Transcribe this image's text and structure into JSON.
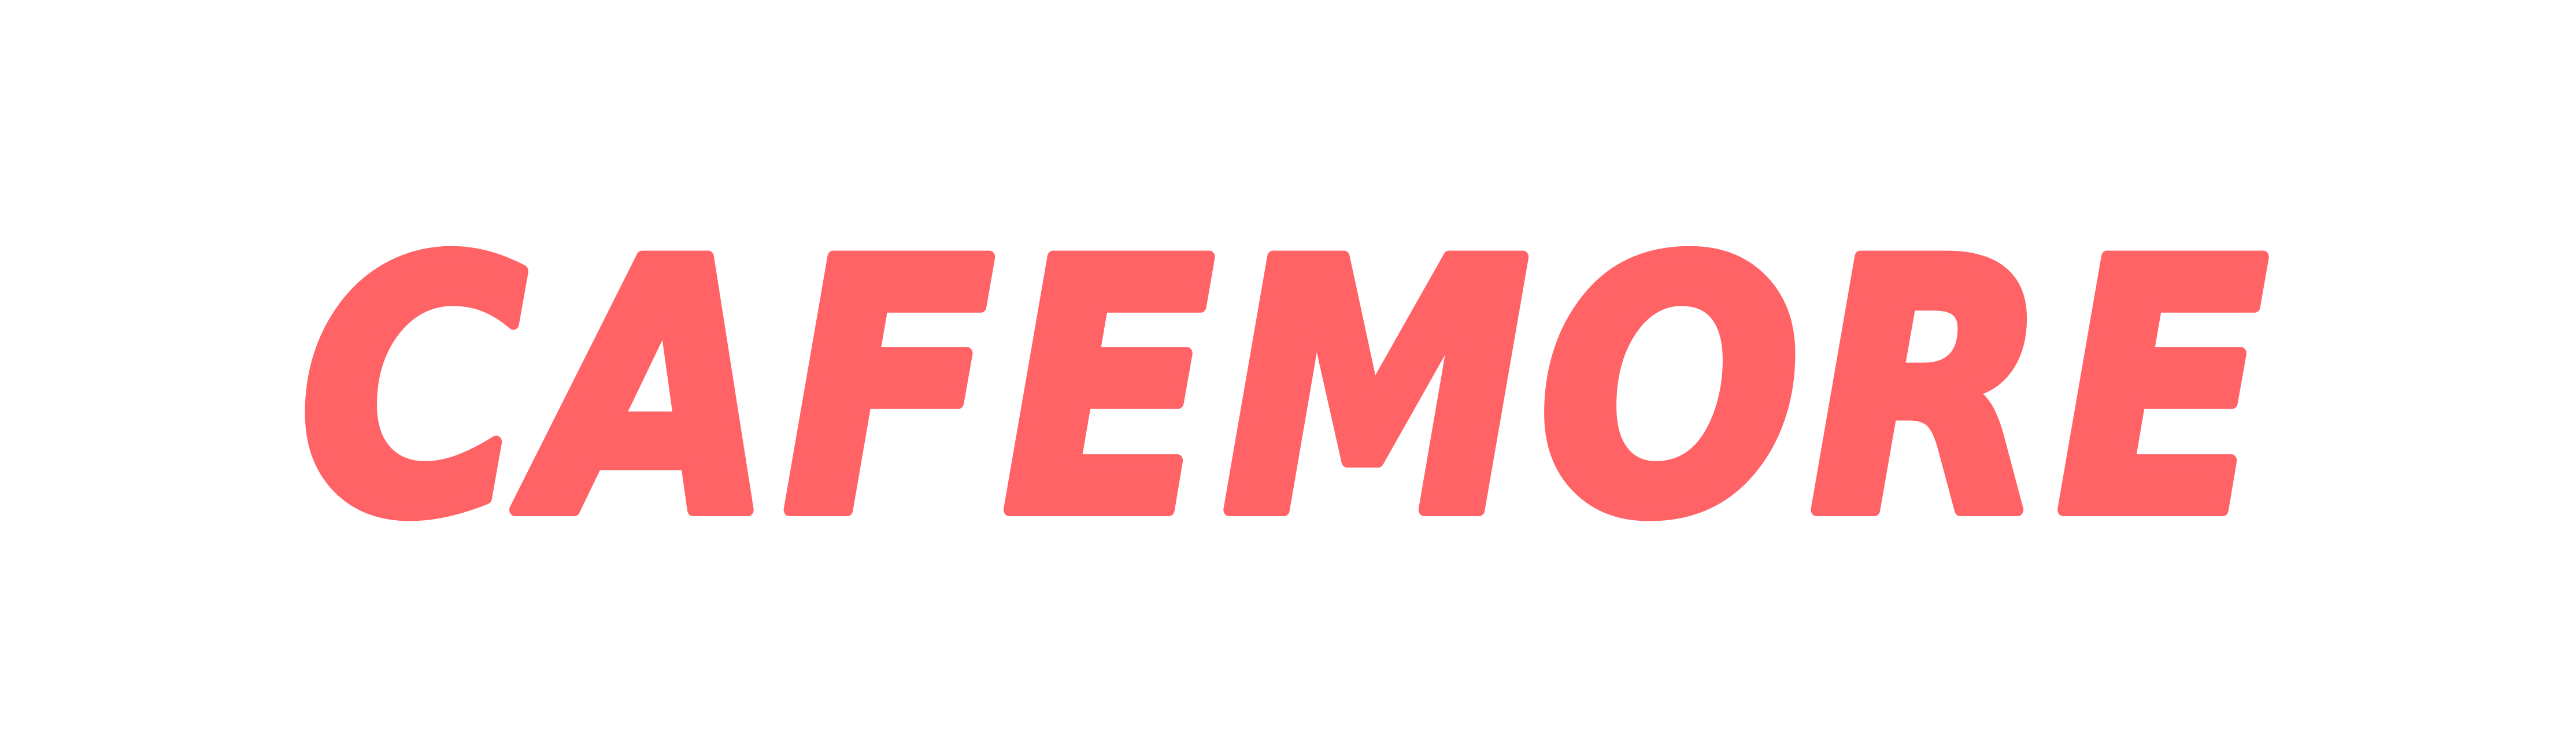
{
  "logo": {
    "text": "CAFEMORE",
    "color": "#FF6366"
  },
  "background_color": "#FFFFFF"
}
